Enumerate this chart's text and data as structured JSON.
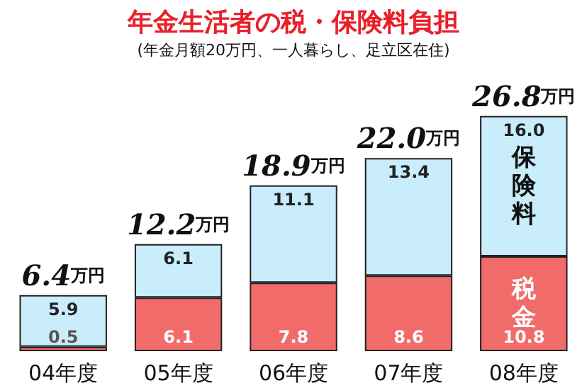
{
  "chart_data": {
    "type": "bar",
    "title": "年金生活者の税・保険料負担",
    "subtitle": "(年金月額20万円、一人暮らし、足立区在住)",
    "categories": [
      "04年度",
      "05年度",
      "06年度",
      "07年度",
      "08年度"
    ],
    "stacked": true,
    "legend": false,
    "series": [
      {
        "name": "税金",
        "color": "#f26b6b",
        "values": [
          0.5,
          6.1,
          7.8,
          8.6,
          10.8
        ],
        "value_labels": [
          "0.5",
          "6.1",
          "7.8",
          "8.6",
          "10.8"
        ]
      },
      {
        "name": "保険料",
        "color": "#c9edfb",
        "values": [
          5.9,
          6.1,
          11.1,
          13.4,
          16.0
        ],
        "value_labels": [
          "5.9",
          "6.1",
          "11.1",
          "13.4",
          "16.0"
        ]
      }
    ],
    "totals": [
      "6.4万円",
      "12.2万円",
      "18.9万円",
      "22.0万円",
      "26.8万円"
    ]
  }
}
